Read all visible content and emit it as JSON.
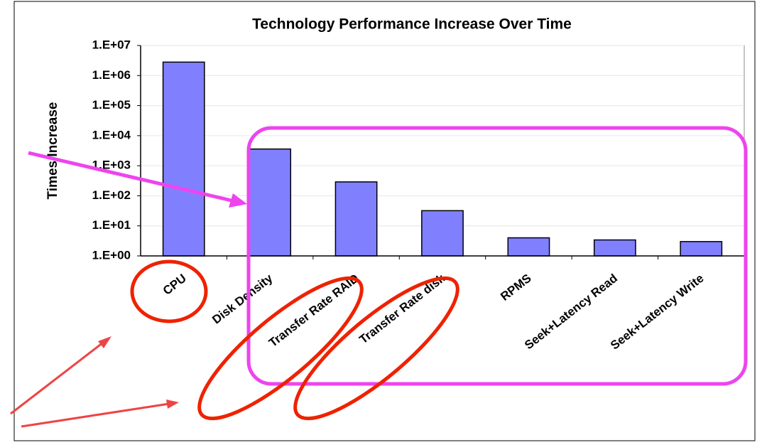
{
  "chart_data": {
    "type": "bar",
    "title": "Technology Performance Increase Over Time",
    "y_label": "Times Increase",
    "categories": [
      "CPU",
      "Disk Density",
      "Transfer Rate RAID",
      "Transfer Rate disk",
      "RPMS",
      "Seek+Latency Read",
      "Seek+Latency Write"
    ],
    "values": [
      2800000,
      3600,
      290,
      32,
      4,
      3.4,
      3
    ],
    "color": "#8080ff",
    "log_scale": true,
    "ylim": [
      1,
      10000000
    ],
    "yticks": [
      {
        "value": 1,
        "label": "1.E+00"
      },
      {
        "value": 10,
        "label": "1.E+01"
      },
      {
        "value": 100,
        "label": "1.E+02"
      },
      {
        "value": 1000,
        "label": "1.E+03"
      },
      {
        "value": 10000,
        "label": "1.E+04"
      },
      {
        "value": 100000,
        "label": "1.E+05"
      },
      {
        "value": 1000000,
        "label": "1.E+06"
      },
      {
        "value": 10000000,
        "label": "1.E+07"
      }
    ],
    "grid": true
  }
}
